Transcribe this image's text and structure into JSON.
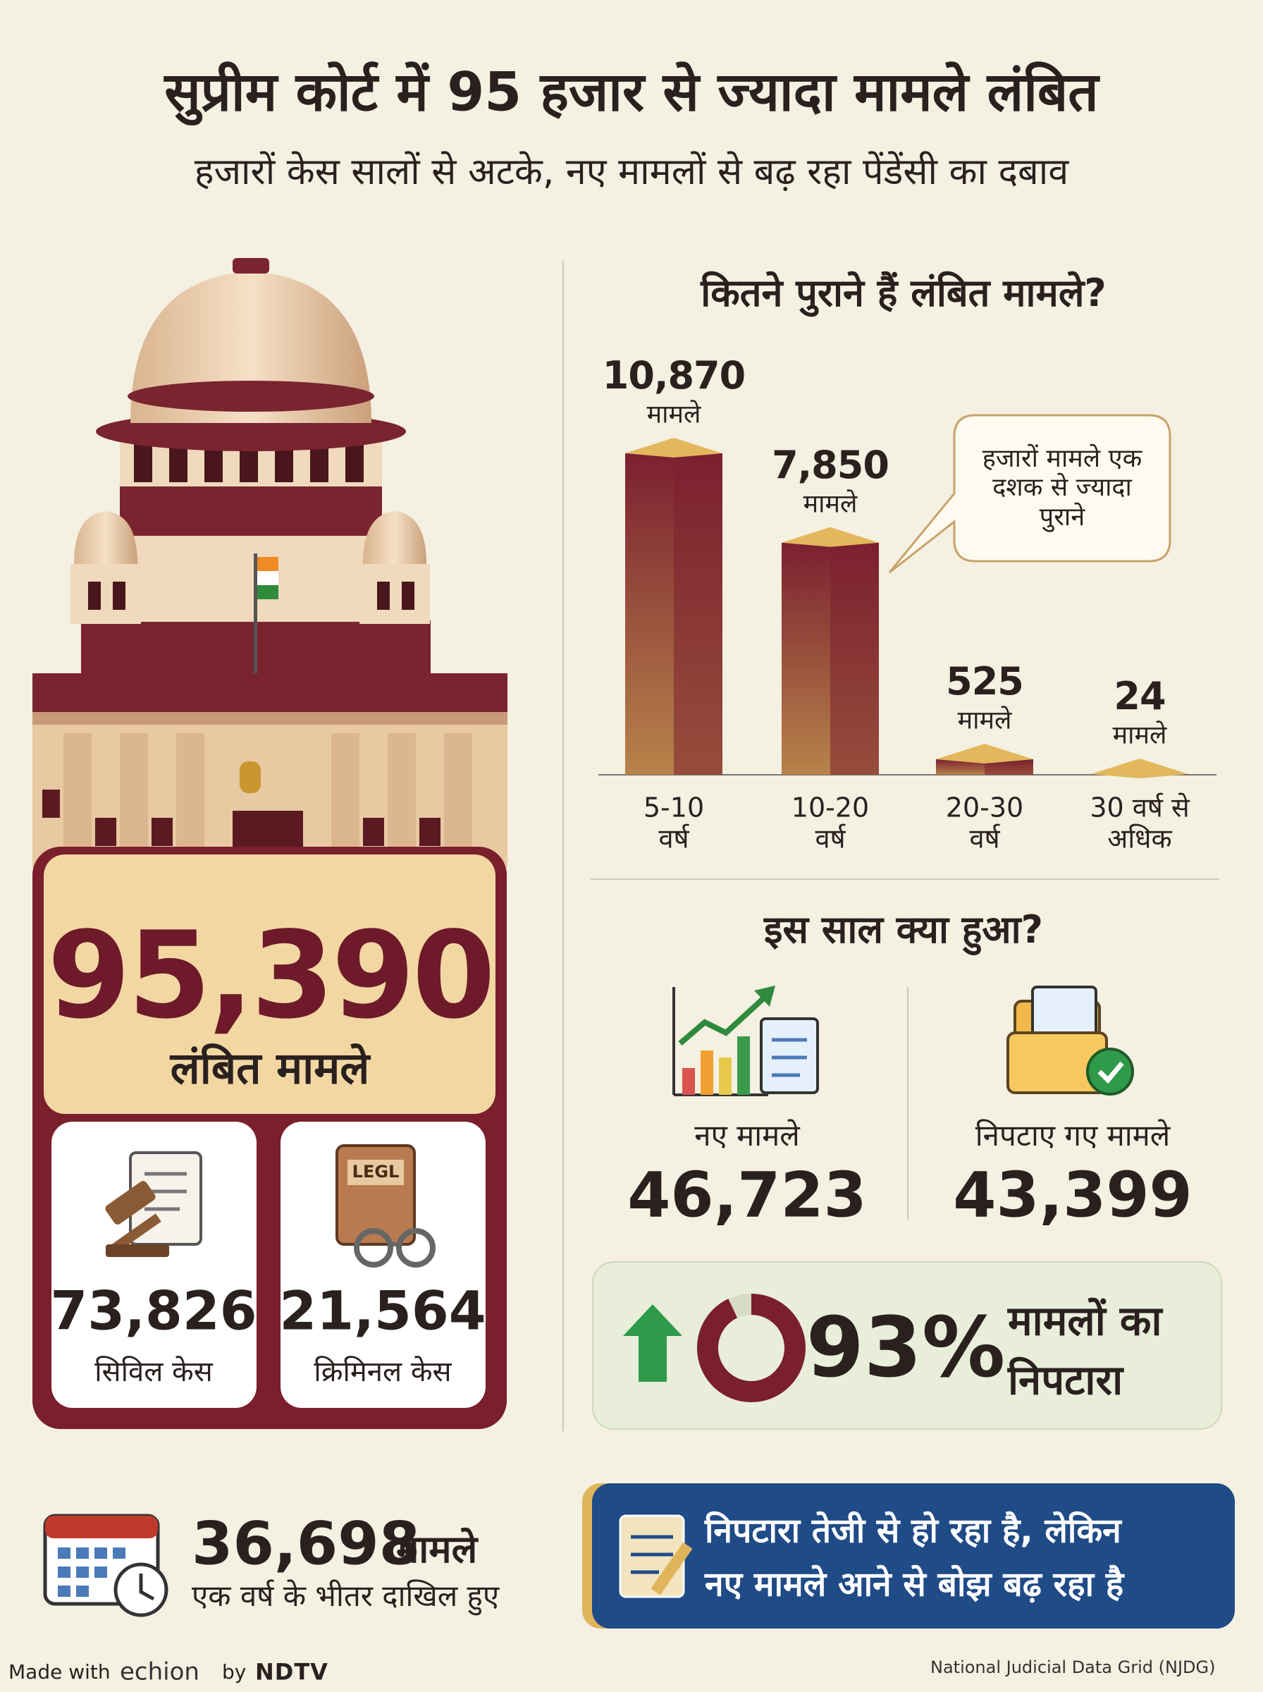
{
  "header": {
    "title": "सुप्रीम कोर्ट में 95 हजार से ज्यादा मामले लंबित",
    "subtitle": "हजारों केस सालों से अटके, नए मामलों से बढ़ रहा पेंडेंसी का दबाव"
  },
  "hero": {
    "total": "95,390",
    "total_label": "लंबित मामले",
    "civil": {
      "value": "73,826",
      "label": "सिविल केस"
    },
    "criminal": {
      "value": "21,564",
      "label": "क्रिमिनल केस",
      "icon_text": "LEGL"
    }
  },
  "chart_data": {
    "type": "bar",
    "title": "कितने पुराने हैं लंबित मामले?",
    "categories": [
      "5-10 वर्ष",
      "10-20 वर्ष",
      "20-30 वर्ष",
      "30 वर्ष से अधिक"
    ],
    "values": [
      10870,
      7850,
      525,
      24
    ],
    "value_labels": [
      "10,870",
      "7,850",
      "525",
      "24"
    ],
    "unit_label": "मामले",
    "annotation": "हजारों मामले एक दशक से ज्यादा पुराने",
    "color": "#7b2030"
  },
  "this_year": {
    "title": "इस साल क्या हुआ?",
    "new": {
      "label": "नए मामले",
      "value": "46,723"
    },
    "disposed": {
      "label": "निपटाए गए मामले",
      "value": "43,399"
    },
    "disposal_rate": {
      "value": 93,
      "label": "93%"
    },
    "disposal_text": [
      "मामलों का",
      "निपटारा"
    ]
  },
  "bottom": {
    "filed": {
      "value": "36,698",
      "unit": "मामले",
      "label": "एक वर्ष के भीतर दाखिल हुए"
    },
    "note": [
      "निपटारा तेजी से हो रहा है, लेकिन",
      "नए मामले आने से बोझ बढ़ रहा है"
    ]
  },
  "footer": {
    "made_with": "Made with",
    "brand": "echion",
    "by": "by",
    "partner": "NDTV",
    "source": "National Judicial Data Grid (NJDG)"
  }
}
